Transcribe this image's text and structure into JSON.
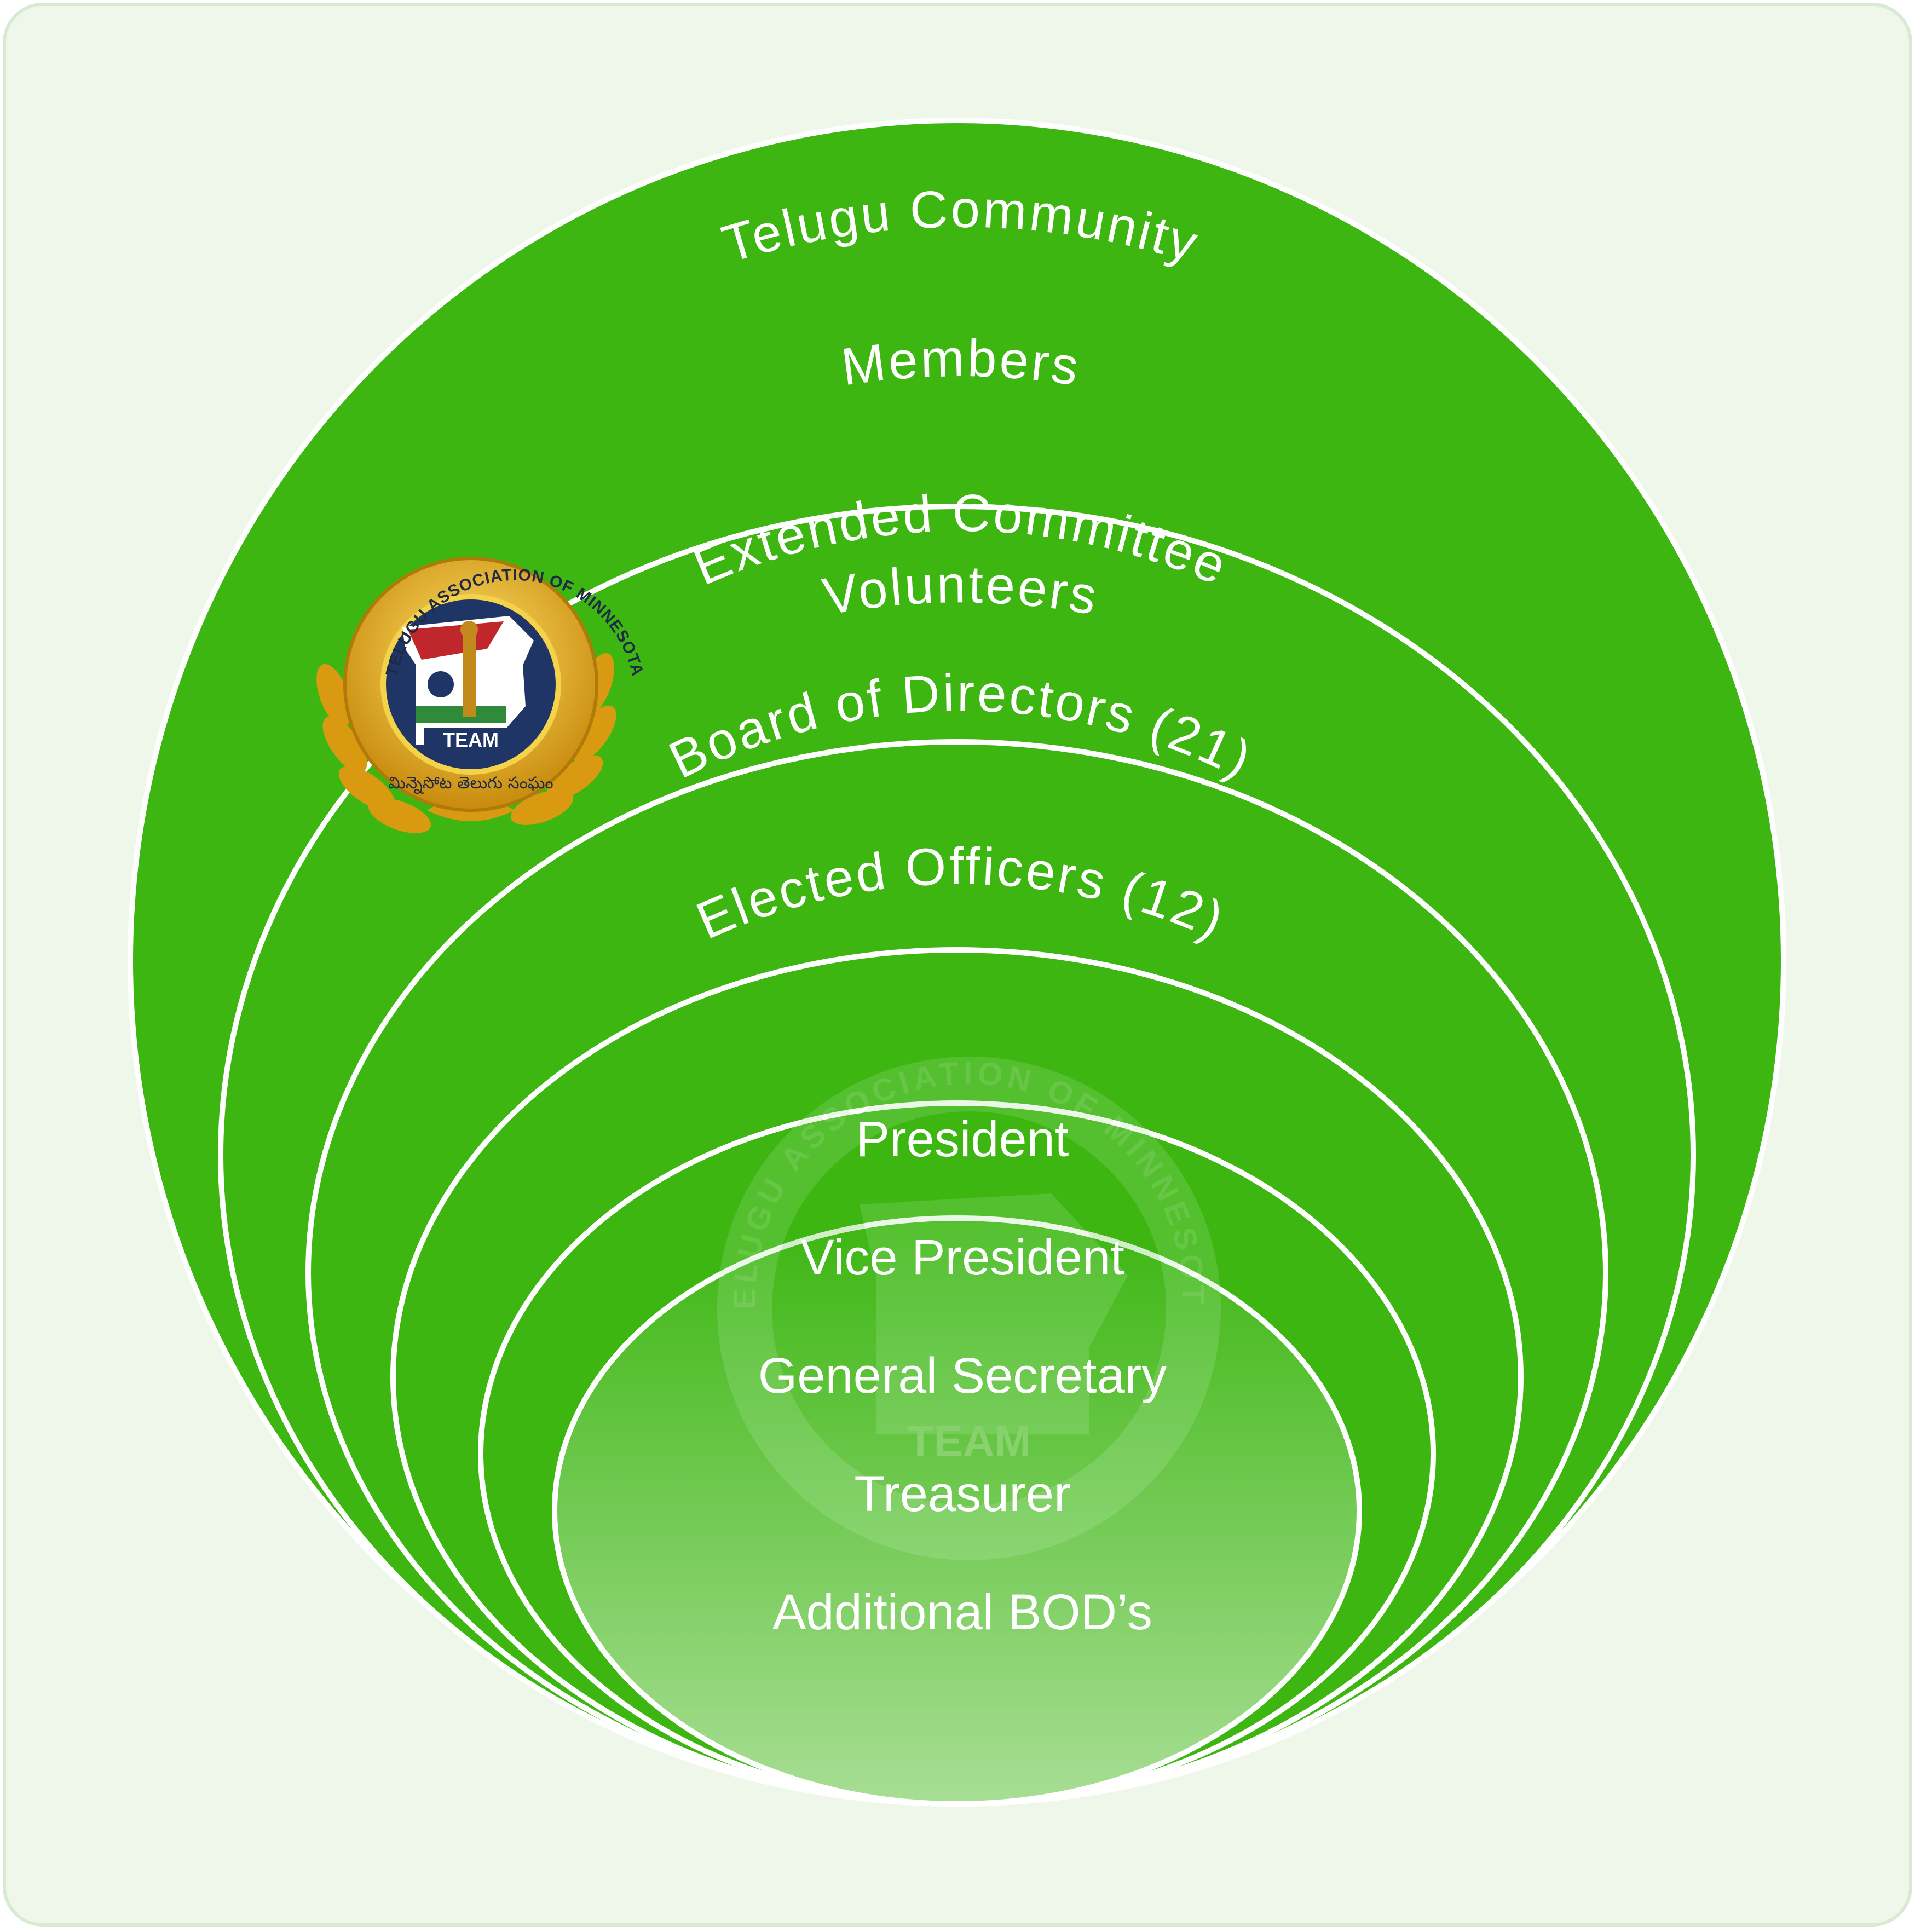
{
  "rings": [
    {
      "label": "Telugu Community"
    },
    {
      "label": "Members"
    },
    {
      "label": "Extended Committee",
      "label2": "Volunteers"
    },
    {
      "label": "Board of Directors (21)"
    },
    {
      "label": "Elected Officers (12)"
    }
  ],
  "officers": [
    "President",
    "Vice President",
    "General Secretary",
    "Treasurer",
    "Additional BOD’s"
  ],
  "logo": {
    "arc_text": "TELUGU ASSOCIATION OF MINNESOTA",
    "badge_text": "TEAM",
    "telugu_text": "మిన్నెసోట తెలుగు సంఘం"
  },
  "colors": {
    "background": "#eef7ea",
    "ring_fill": "#3db612",
    "ring_stroke": "#ffffff",
    "logo_gold": "#e8b51c",
    "logo_navy": "#1f3566"
  }
}
